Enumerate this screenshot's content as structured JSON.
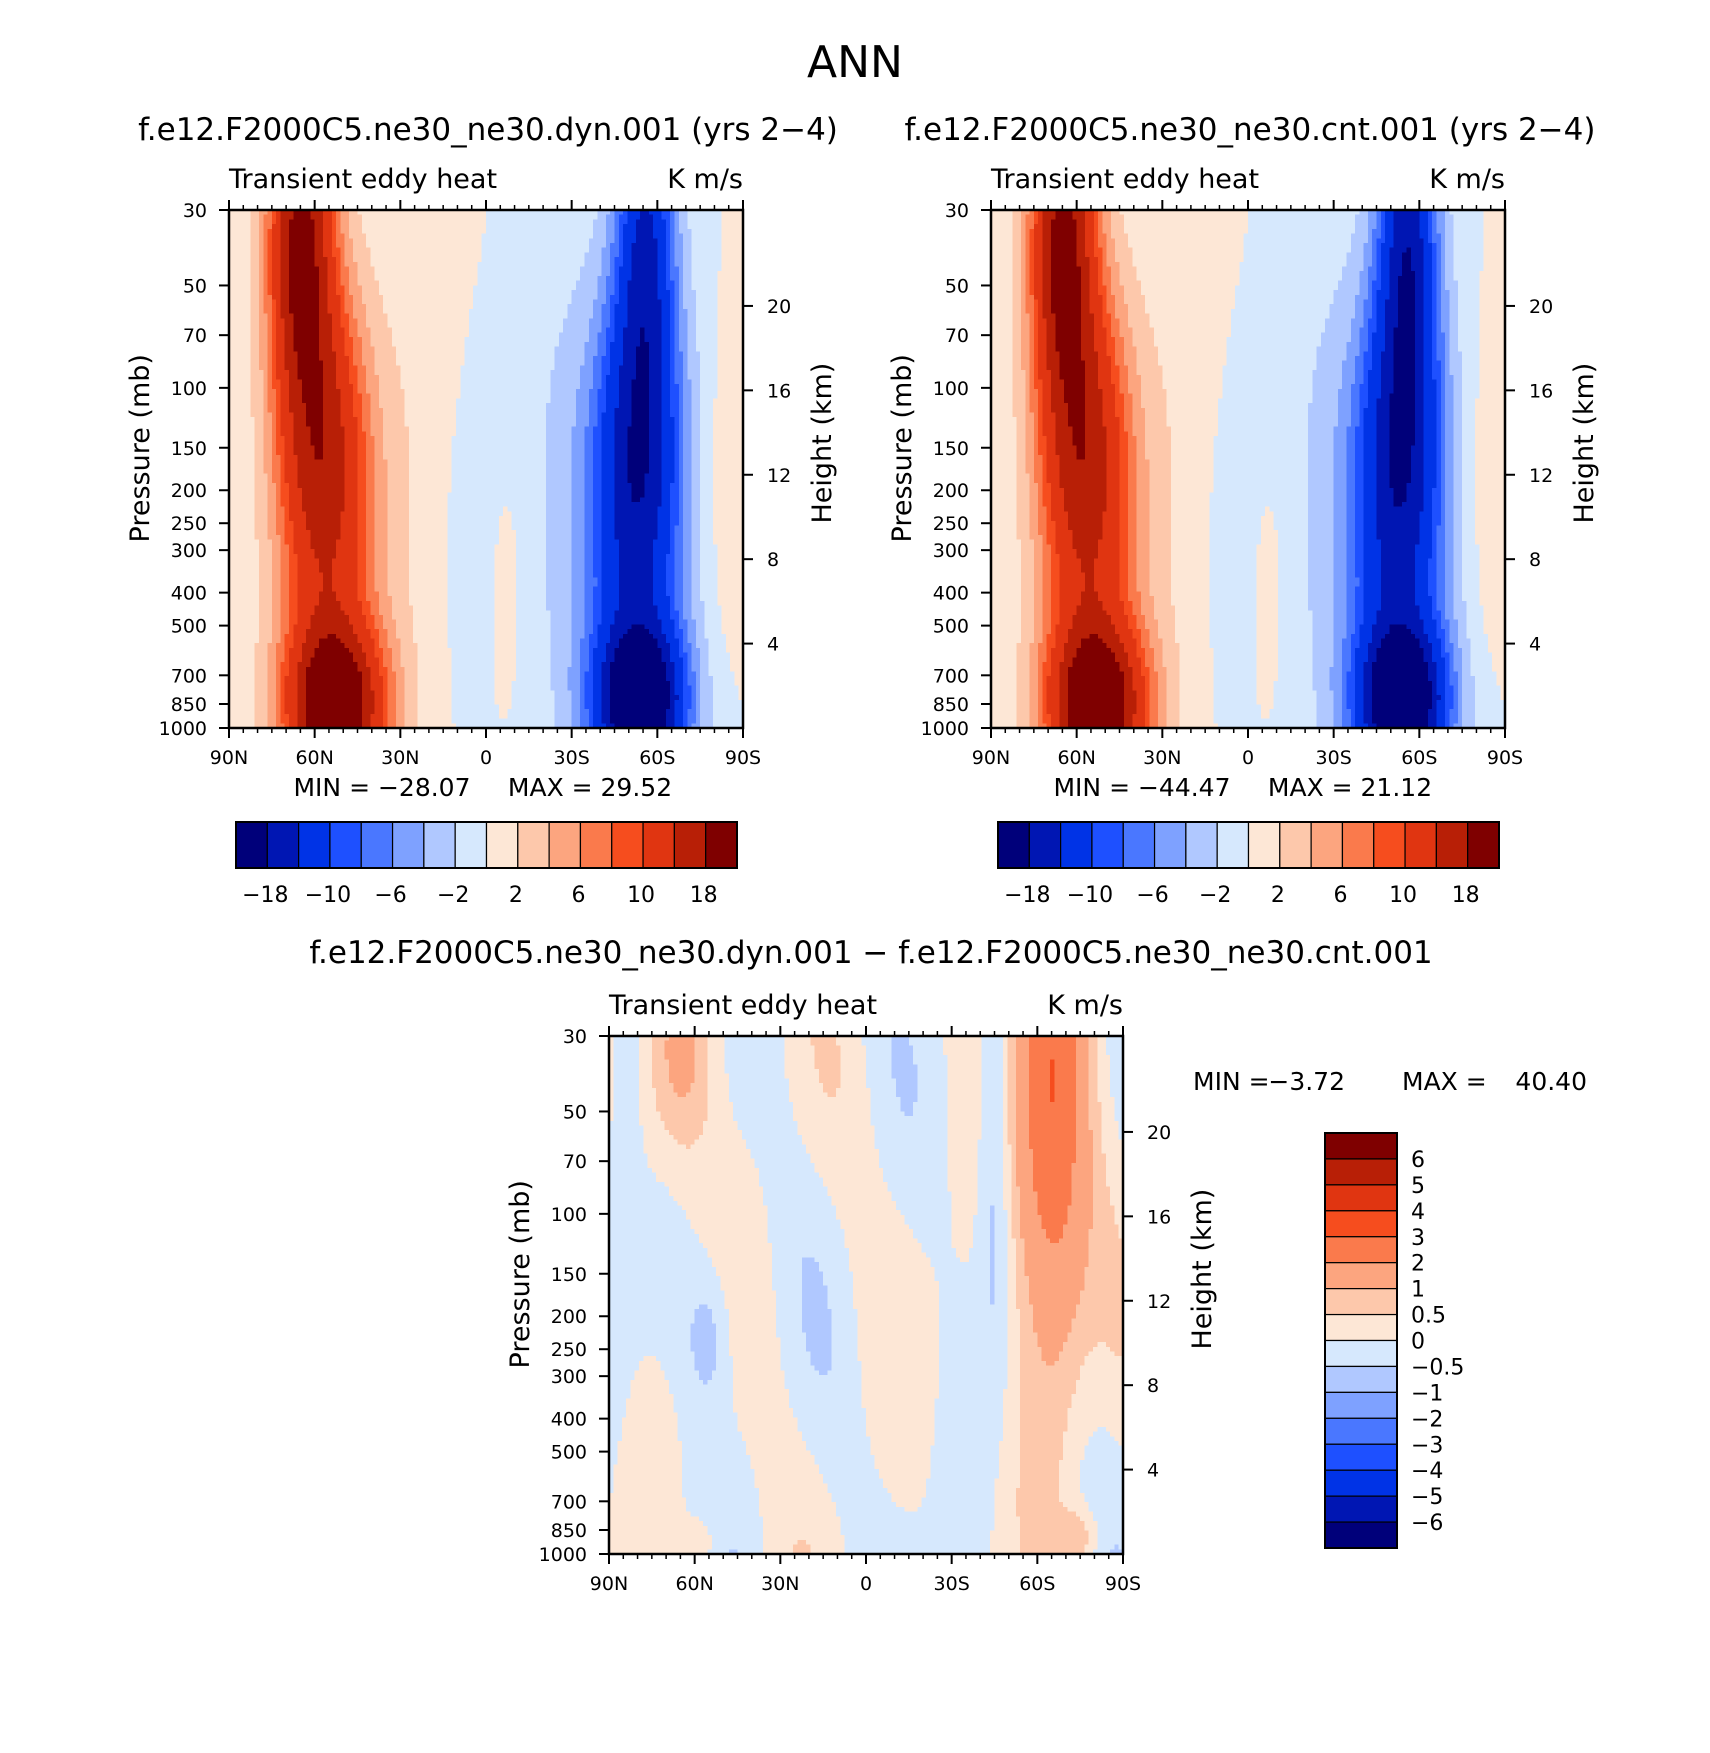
{
  "figure": {
    "title": "ANN"
  },
  "chart_data": [
    {
      "type": "heatmap",
      "title": "f.e12.F2000C5.ne30_ne30.dyn.001 (yrs 2-4)",
      "variable": "Transient eddy heat",
      "units": "K m/s",
      "xlabel": "",
      "ylabel": "Pressure (mb)",
      "y2label": "Height (km)",
      "x_ticks": [
        "90N",
        "60N",
        "30N",
        "0",
        "30S",
        "60S",
        "90S"
      ],
      "x_range": [
        90,
        -90
      ],
      "y_ticks": [
        "30",
        "50",
        "70",
        "100",
        "150",
        "200",
        "250",
        "300",
        "400",
        "500",
        "700",
        "850",
        "1000"
      ],
      "y_range": [
        1000,
        30
      ],
      "y2_ticks": [
        "20",
        "16",
        "12",
        "8",
        "4"
      ],
      "min_label": "MIN = -28.07",
      "max_label": "MAX = 29.52",
      "colorbar_labels": [
        "-18",
        "-10",
        "-6",
        "-2",
        "2",
        "6",
        "10",
        "18"
      ],
      "features": [
        {
          "name": "NH upper maximum",
          "lat": 57,
          "p": 170,
          "value": 14
        },
        {
          "name": "NH surface maximum",
          "lat": 53,
          "p": 870,
          "value": 22
        },
        {
          "name": "NH stratospheric maximum",
          "lat": 65,
          "p": 35,
          "value": 18
        },
        {
          "name": "SH upper minimum",
          "lat": -53,
          "p": 180,
          "value": -14
        },
        {
          "name": "SH surface minimum",
          "lat": -54,
          "p": 860,
          "value": -22
        },
        {
          "name": "SH stratospheric minimum",
          "lat": -56,
          "p": 35,
          "value": -12
        }
      ]
    },
    {
      "type": "heatmap",
      "title": "f.e12.F2000C5.ne30_ne30.cnt.001 (yrs 2-4)",
      "variable": "Transient eddy heat",
      "units": "K m/s",
      "xlabel": "",
      "ylabel": "Pressure (mb)",
      "y2label": "Height (km)",
      "x_ticks": [
        "90N",
        "60N",
        "30N",
        "0",
        "30S",
        "60S",
        "90S"
      ],
      "x_range": [
        90,
        -90
      ],
      "y_ticks": [
        "30",
        "50",
        "70",
        "100",
        "150",
        "200",
        "250",
        "300",
        "400",
        "500",
        "700",
        "850",
        "1000"
      ],
      "y_range": [
        1000,
        30
      ],
      "y2_ticks": [
        "20",
        "16",
        "12",
        "8",
        "4"
      ],
      "min_label": "MIN = -44.47",
      "max_label": "MAX = 21.12",
      "colorbar_labels": [
        "-18",
        "-10",
        "-6",
        "-2",
        "2",
        "6",
        "10",
        "18"
      ],
      "features": [
        {
          "name": "NH upper maximum",
          "lat": 57,
          "p": 170,
          "value": 14
        },
        {
          "name": "NH surface maximum",
          "lat": 53,
          "p": 870,
          "value": 20
        },
        {
          "name": "SH upper minimum",
          "lat": -53,
          "p": 180,
          "value": -15
        },
        {
          "name": "SH surface minimum",
          "lat": -54,
          "p": 860,
          "value": -22
        }
      ]
    },
    {
      "type": "heatmap",
      "title": "f.e12.F2000C5.ne30_ne30.dyn.001 - f.e12.F2000C5.ne30_ne30.cnt.001",
      "variable": "Transient eddy heat",
      "units": "K m/s",
      "xlabel": "",
      "ylabel": "Pressure (mb)",
      "y2label": "Height (km)",
      "x_ticks": [
        "90N",
        "60N",
        "30N",
        "0",
        "30S",
        "60S",
        "90S"
      ],
      "x_range": [
        90,
        -90
      ],
      "y_ticks": [
        "30",
        "50",
        "70",
        "100",
        "150",
        "200",
        "250",
        "300",
        "400",
        "500",
        "700",
        "850",
        "1000"
      ],
      "y_range": [
        1000,
        30
      ],
      "y2_ticks": [
        "20",
        "16",
        "12",
        "8",
        "4"
      ],
      "min_label": "MIN =",
      "min_value": "-3.72",
      "max_label": "MAX =",
      "max_value": "40.40",
      "colorbar_labels": [
        "6",
        "5",
        "4",
        "3",
        "2",
        "1",
        "0.5",
        "0",
        "-0.5",
        "-1",
        "-2",
        "-3",
        "-4",
        "-5",
        "-6"
      ],
      "features": [
        {
          "name": "SH stratospheric positive",
          "lat": -65,
          "p": 40,
          "value": 3
        },
        {
          "name": "NH stratospheric positive",
          "lat": 65,
          "p": 45,
          "value": 1
        },
        {
          "name": "SH midlatitude negative",
          "lat": -45,
          "p": 60,
          "value": -0.7
        },
        {
          "name": "NH midlatitude negative",
          "lat": 55,
          "p": 250,
          "value": -0.7
        }
      ]
    }
  ],
  "colors": {
    "ramp_div": [
      "#00007a",
      "#0016b3",
      "#0033e6",
      "#1e50ff",
      "#4a77ff",
      "#7ea1ff",
      "#b0c8ff",
      "#d6e8fd",
      "#fde7d6",
      "#fdc8ab",
      "#fca57f",
      "#fa7a4c",
      "#f64d1e",
      "#e03511",
      "#b81f06",
      "#7f0000"
    ],
    "ramp_diff": [
      "#00007a",
      "#0016b3",
      "#0033e6",
      "#1e50ff",
      "#4a77ff",
      "#7ea1ff",
      "#b0c8ff",
      "#d6e8fd",
      "#fde7d6",
      "#fdc8ab",
      "#fca57f",
      "#fa7a4c",
      "#f64d1e",
      "#e03511",
      "#b81f06",
      "#7f0000"
    ]
  }
}
